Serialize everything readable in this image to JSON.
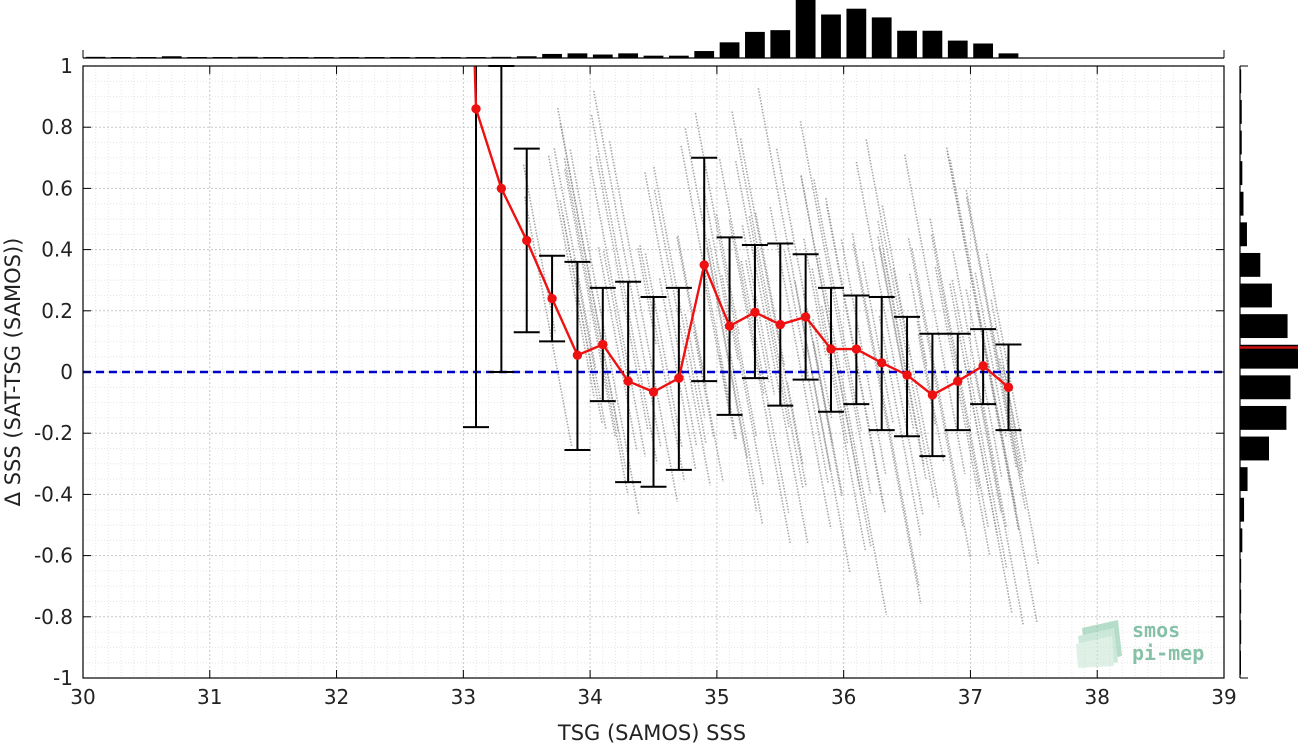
{
  "chart_data": {
    "type": "scatter",
    "xlabel": "TSG (SAMOS) SSS",
    "ylabel": "Δ SSS (SAT-TSG (SAMOS))",
    "xlim": [
      30,
      39
    ],
    "ylim": [
      -1,
      1
    ],
    "xticks": [
      "30",
      "31",
      "32",
      "33",
      "34",
      "35",
      "36",
      "37",
      "38",
      "39"
    ],
    "yticks": [
      "-1",
      "-0.8",
      "-0.6",
      "-0.4",
      "-0.2",
      "0",
      "0.2",
      "0.4",
      "0.6",
      "0.8",
      "1"
    ],
    "grid": "on",
    "zero_line": {
      "y": 0,
      "color": "#0000cc",
      "style": "dashed"
    },
    "binned_mean": {
      "color": "#ee1111",
      "x": [
        33.1,
        33.3,
        33.5,
        33.7,
        33.9,
        34.1,
        34.3,
        34.5,
        34.7,
        34.9,
        35.1,
        35.3,
        35.5,
        35.7,
        35.9,
        36.1,
        36.3,
        36.5,
        36.7,
        36.9,
        37.1,
        37.3
      ],
      "y": [
        0.86,
        0.6,
        0.43,
        0.24,
        0.055,
        0.09,
        -0.03,
        -0.065,
        -0.02,
        0.35,
        0.15,
        0.195,
        0.155,
        0.18,
        0.075,
        0.075,
        0.03,
        -0.01,
        -0.075,
        -0.03,
        0.02,
        -0.05
      ],
      "error_low": [
        -0.18,
        0.0,
        0.13,
        0.1,
        -0.255,
        -0.095,
        -0.36,
        -0.375,
        -0.32,
        -0.03,
        -0.14,
        -0.02,
        -0.11,
        -0.025,
        -0.13,
        -0.105,
        -0.19,
        -0.21,
        -0.275,
        -0.19,
        -0.105,
        -0.19
      ],
      "error_high": [
        1.06,
        1.0,
        0.73,
        0.38,
        0.36,
        0.275,
        0.295,
        0.245,
        0.275,
        0.7,
        0.44,
        0.415,
        0.42,
        0.385,
        0.275,
        0.25,
        0.245,
        0.18,
        0.125,
        0.125,
        0.14,
        0.09
      ]
    },
    "top_histogram": {
      "x": [
        30.1,
        30.3,
        30.5,
        30.7,
        30.9,
        31.1,
        31.3,
        31.5,
        31.7,
        31.9,
        32.1,
        32.3,
        32.5,
        32.7,
        32.9,
        33.1,
        33.3,
        33.5,
        33.7,
        33.9,
        34.1,
        34.3,
        34.5,
        34.7,
        34.9,
        35.1,
        35.3,
        35.5,
        35.7,
        35.9,
        36.1,
        36.3,
        36.5,
        36.7,
        36.9,
        37.1,
        37.3
      ],
      "freq": [
        0.02,
        0.005,
        0.005,
        0.03,
        0.005,
        0.005,
        0.02,
        0.005,
        0.005,
        0.005,
        0.005,
        0.005,
        0.005,
        0.005,
        0.005,
        0.005,
        0.02,
        0.03,
        0.07,
        0.08,
        0.06,
        0.08,
        0.04,
        0.04,
        0.12,
        0.27,
        0.45,
        0.48,
        1.0,
        0.75,
        0.85,
        0.7,
        0.47,
        0.47,
        0.3,
        0.25,
        0.08
      ]
    },
    "right_histogram": {
      "y": [
        0.95,
        0.85,
        0.75,
        0.65,
        0.55,
        0.45,
        0.35,
        0.25,
        0.15,
        0.05,
        -0.05,
        -0.15,
        -0.25,
        -0.35,
        -0.45,
        -0.55,
        -0.65,
        -0.75,
        -0.85,
        -0.95
      ],
      "freq": [
        0.02,
        0.03,
        0.03,
        0.04,
        0.06,
        0.12,
        0.35,
        0.55,
        0.82,
        1.0,
        0.87,
        0.8,
        0.5,
        0.13,
        0.07,
        0.04,
        0.02,
        0.02,
        0.02,
        0.01
      ],
      "mean_line_y": 0.08,
      "mean_line_color": "#cc1111"
    },
    "scatter_color": "#8c8c8c"
  },
  "logo": {
    "line1": "smos",
    "line2": "pi-mep",
    "color": "#5fae8b"
  }
}
